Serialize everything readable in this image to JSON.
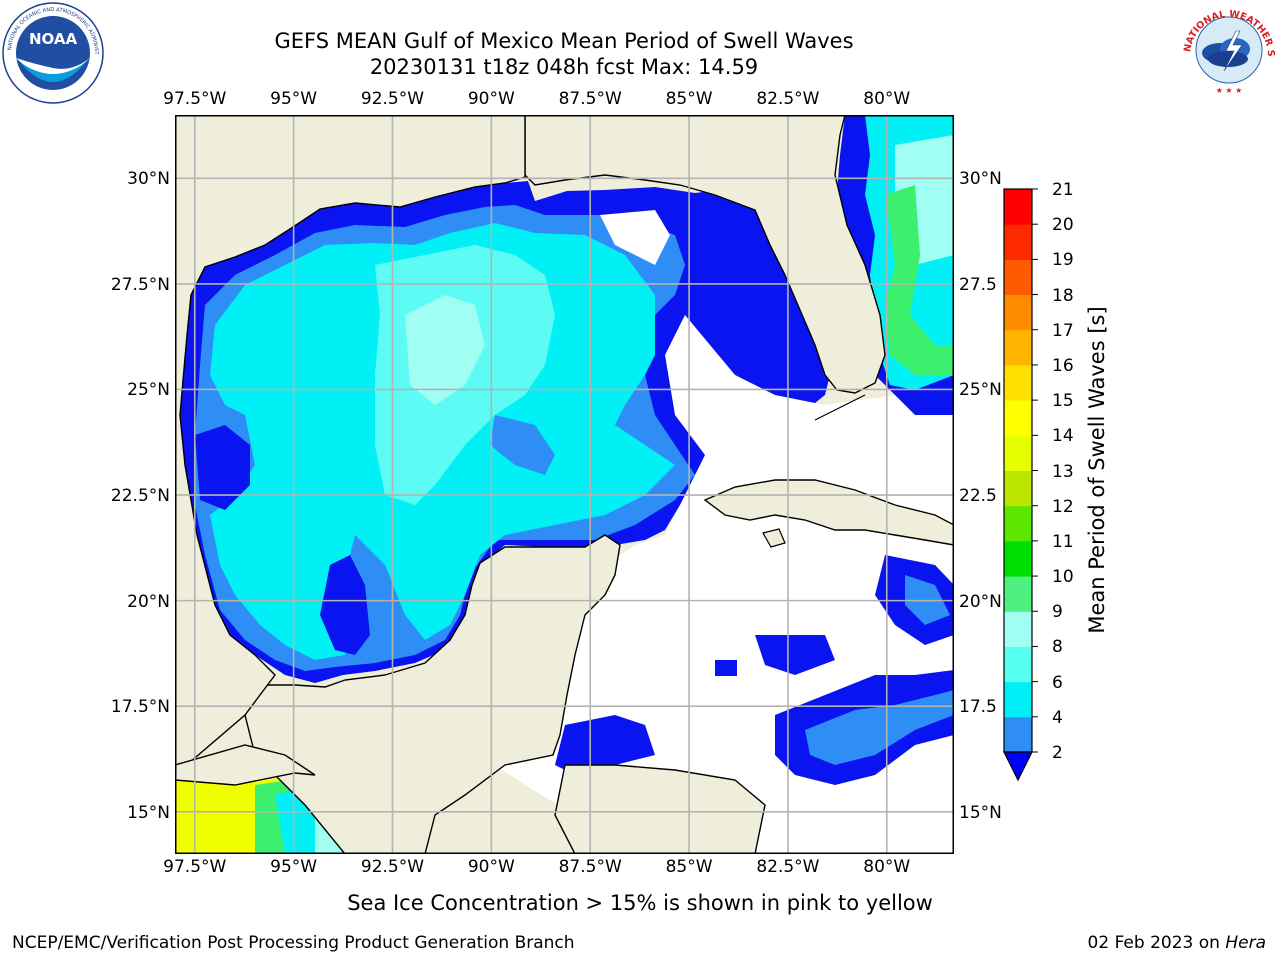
{
  "title_line1": "GEFS MEAN Gulf of Mexico Mean Period of Swell Waves",
  "title_line2": "20230131 t18z 048h fcst   Max: 14.59",
  "logo_left": "NOAA",
  "logo_left_ring": "NATIONAL OCEANIC AND ATMOSPHERIC ADMINISTRATION · U.S. DEPARTMENT OF COMMERCE",
  "logo_right_ring": "NATIONAL WEATHER SERVICE",
  "lon_labels": [
    "97.5°W",
    "95°W",
    "92.5°W",
    "90°W",
    "87.5°W",
    "85°W",
    "82.5°W",
    "80°W"
  ],
  "lon_values": [
    -97.5,
    -95,
    -92.5,
    -90,
    -87.5,
    -85,
    -82.5,
    -80
  ],
  "lat_labels_left": [
    "30°N",
    "27.5°N",
    "25°N",
    "22.5°N",
    "20°N",
    "17.5°N",
    "15°N"
  ],
  "lat_labels_right": [
    "30°N",
    "27.5",
    "25°N",
    "22.5",
    "20°N",
    "17.5",
    "15°N"
  ],
  "lat_values": [
    30,
    27.5,
    25,
    22.5,
    20,
    17.5,
    15
  ],
  "map_extent": {
    "lon": [
      -98,
      -78.3
    ],
    "lat": [
      14,
      31.5
    ]
  },
  "colorbar": {
    "title": "Mean Period of Swell Waves [s]",
    "ticks": [
      "21",
      "20",
      "19",
      "18",
      "17",
      "16",
      "15",
      "14",
      "13",
      "12",
      "11",
      "10",
      "9",
      "8",
      "6",
      "4",
      "2"
    ],
    "levels": [
      2,
      4,
      6,
      8,
      9,
      10,
      11,
      12,
      13,
      14,
      15,
      16,
      17,
      18,
      19,
      20,
      21
    ],
    "colors": [
      "#0a34f5",
      "#2f8ef5",
      "#00eef5",
      "#57ffee",
      "#a0fff2",
      "#4ef07f",
      "#00e000",
      "#5ce600",
      "#bce600",
      "#e6ff00",
      "#ffff00",
      "#ffe000",
      "#ffb400",
      "#ff8c00",
      "#ff5a00",
      "#ff2a00",
      "#ff0000"
    ],
    "extend_color": "#0000ff"
  },
  "colors": {
    "land": "#efeedb",
    "ocean_no_data": "#ffffff",
    "gridline": "#b3b3b3",
    "deep_blue": "#0a14f0",
    "mid_blue": "#2f8ef5",
    "cyan": "#00f0f5",
    "light_cyan": "#5cfcf5",
    "pale_cyan": "#a0fff2",
    "green": "#3cf06e",
    "yellow": "#f0ff00"
  },
  "caption": "Sea Ice Concentration > 15% is shown in pink to yellow",
  "footer_left": "NCEP/EMC/Verification Post Processing Product Generation Branch",
  "footer_right_date": "02 Feb 2023 on",
  "footer_right_host": "Hera"
}
